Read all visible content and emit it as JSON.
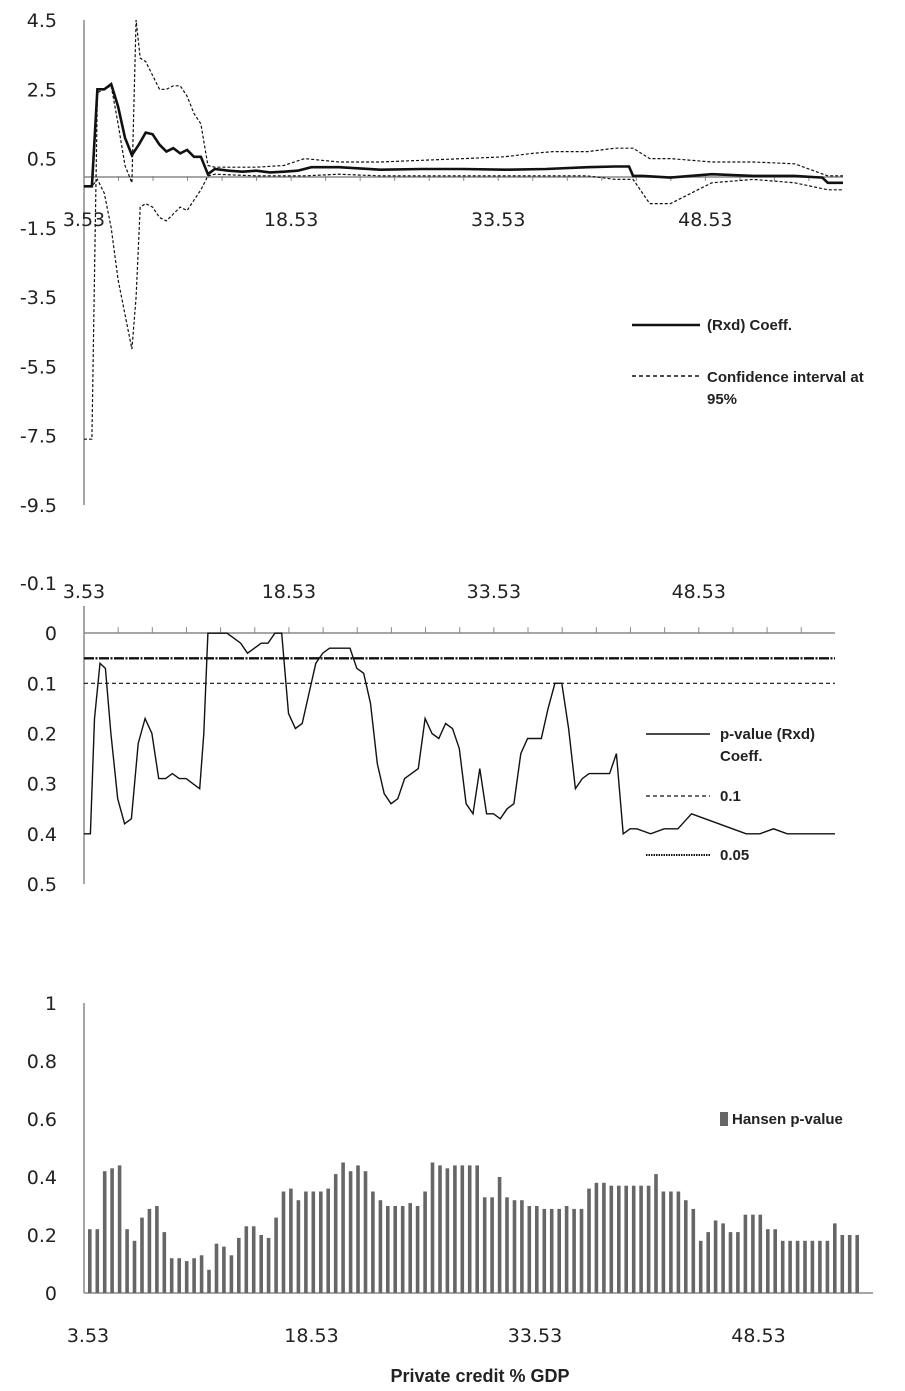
{
  "chart_data": [
    {
      "type": "line",
      "xlabel": "",
      "ylabel": "",
      "x_tick_labels": [
        "3.53",
        "18.53",
        "33.53",
        "48.53"
      ],
      "y_tick_labels": [
        "4.5",
        "2.5",
        "0.5",
        "-1.5",
        "-3.5",
        "-5.5",
        "-7.5",
        "-9.5"
      ],
      "xlim": [
        3.53,
        58.5
      ],
      "ylim": [
        -9.5,
        4.5
      ],
      "series": [
        {
          "name": "(Rxd) Coeff.",
          "style": "solid",
          "x": [
            3.53,
            4.1,
            4.5,
            5.0,
            5.5,
            6.0,
            6.5,
            7.0,
            7.5,
            8.0,
            8.5,
            9.0,
            9.5,
            10.0,
            10.5,
            11.0,
            11.5,
            12.0,
            12.5,
            13.0,
            14.0,
            15.0,
            16.0,
            17.0,
            18.0,
            19.0,
            20.0,
            22.0,
            25.0,
            28.0,
            31.0,
            34.0,
            37.0,
            40.0,
            42.0,
            43.0,
            43.3,
            44.0,
            46.0,
            49.0,
            52.0,
            55.0,
            57.0,
            57.4,
            58.5
          ],
          "y": [
            -0.3,
            -0.3,
            2.5,
            2.5,
            2.65,
            2.0,
            1.1,
            0.6,
            0.9,
            1.25,
            1.2,
            0.9,
            0.7,
            0.8,
            0.65,
            0.75,
            0.55,
            0.55,
            0.05,
            0.2,
            0.15,
            0.12,
            0.15,
            0.1,
            0.12,
            0.15,
            0.25,
            0.25,
            0.18,
            0.2,
            0.2,
            0.18,
            0.2,
            0.25,
            0.27,
            0.27,
            0.0,
            0.0,
            -0.05,
            0.05,
            0.0,
            0.0,
            -0.05,
            -0.2,
            -0.2
          ]
        },
        {
          "name": "Confidence interval at 95%",
          "style": "dashed",
          "x": [
            3.53,
            4.1,
            4.5,
            5.0,
            5.5,
            6.0,
            6.5,
            7.0,
            7.3,
            7.6,
            8.0,
            8.5,
            9.0,
            9.5,
            10.0,
            10.5,
            11.0,
            11.5,
            12.0,
            12.5,
            13.0,
            16.0,
            18.0,
            19.5,
            22.0,
            25.0,
            28.0,
            31.0,
            34.0,
            36.0,
            37.5,
            40.0,
            42.0,
            43.3,
            44.5,
            46.0,
            49.0,
            52.0,
            55.0,
            57.4,
            58.5
          ],
          "y": [
            -7.6,
            -7.6,
            2.4,
            2.5,
            2.6,
            1.5,
            0.3,
            -0.2,
            4.5,
            3.4,
            3.3,
            2.9,
            2.5,
            2.5,
            2.6,
            2.6,
            2.3,
            1.8,
            1.5,
            0.3,
            0.25,
            0.25,
            0.3,
            0.5,
            0.4,
            0.4,
            0.45,
            0.5,
            0.55,
            0.65,
            0.7,
            0.7,
            0.8,
            0.8,
            0.5,
            0.5,
            0.4,
            0.4,
            0.35,
            0.0,
            0.0
          ]
        },
        {
          "name": "",
          "style": "dashed",
          "x": [
            3.53,
            4.1,
            4.5,
            5.0,
            5.5,
            6.0,
            6.5,
            7.0,
            7.3,
            7.6,
            8.0,
            8.5,
            9.0,
            9.5,
            10.0,
            10.5,
            11.0,
            11.5,
            12.0,
            12.5,
            13.0,
            16.0,
            18.0,
            19.5,
            22.0,
            25.0,
            28.0,
            31.0,
            34.0,
            36.0,
            37.5,
            40.0,
            42.0,
            43.3,
            44.5,
            46.0,
            49.0,
            52.0,
            55.0,
            57.4,
            58.5
          ],
          "y": [
            -0.3,
            -0.3,
            -0.1,
            -0.5,
            -1.5,
            -3.0,
            -4.0,
            -5.0,
            -3.5,
            -0.9,
            -0.8,
            -0.9,
            -1.2,
            -1.3,
            -1.1,
            -0.9,
            -1.0,
            -0.7,
            -0.4,
            0.0,
            0.05,
            0.0,
            0.0,
            0.0,
            0.05,
            0.0,
            0.0,
            0.0,
            0.0,
            0.0,
            0.0,
            0.0,
            -0.1,
            -0.1,
            -0.8,
            -0.8,
            -0.2,
            -0.1,
            -0.2,
            -0.4,
            -0.4
          ]
        }
      ]
    },
    {
      "type": "line",
      "xlabel": "",
      "ylabel": "",
      "x_tick_labels": [
        "3.53",
        "18.53",
        "33.53",
        "48.53"
      ],
      "y_tick_labels": [
        "-0.1",
        "0",
        "0.1",
        "0.2",
        "0.3",
        "0.4",
        "0.5"
      ],
      "xlim": [
        3.53,
        58.5
      ],
      "ylim": [
        -0.1,
        0.5
      ],
      "y_inverted": true,
      "series": [
        {
          "name": "p-value (Rxd) Coeff.",
          "style": "solid",
          "x": [
            3.53,
            4.0,
            4.3,
            4.7,
            5.1,
            5.5,
            6.0,
            6.5,
            7.0,
            7.5,
            8.0,
            8.5,
            9.0,
            9.5,
            10.0,
            10.5,
            11.0,
            11.5,
            12.0,
            12.3,
            12.6,
            13.0,
            14.0,
            14.5,
            15.0,
            15.5,
            16.0,
            16.5,
            17.0,
            17.5,
            18.0,
            18.5,
            19.0,
            19.5,
            20.0,
            20.5,
            21.0,
            21.5,
            22.0,
            22.5,
            23.0,
            23.5,
            24.0,
            24.5,
            25.0,
            25.5,
            26.0,
            26.5,
            27.0,
            27.5,
            28.0,
            28.5,
            29.0,
            29.5,
            30.0,
            30.5,
            31.0,
            31.5,
            32.0,
            32.5,
            33.0,
            33.5,
            34.0,
            34.5,
            35.0,
            35.5,
            36.0,
            36.5,
            37.0,
            37.5,
            38.0,
            38.5,
            39.0,
            39.5,
            40.0,
            40.5,
            41.0,
            41.5,
            42.0,
            42.5,
            43.0,
            43.5,
            44.0,
            45.0,
            46.0,
            47.0,
            48.0,
            49.0,
            50.0,
            51.0,
            52.0,
            53.0,
            54.0,
            55.0,
            56.0,
            57.0,
            58.5
          ],
          "y": [
            0.4,
            0.4,
            0.17,
            0.06,
            0.07,
            0.2,
            0.33,
            0.38,
            0.37,
            0.22,
            0.17,
            0.2,
            0.29,
            0.29,
            0.28,
            0.29,
            0.29,
            0.3,
            0.31,
            0.2,
            0.0,
            0.0,
            0.0,
            0.01,
            0.02,
            0.04,
            0.03,
            0.02,
            0.02,
            0.0,
            0.0,
            0.16,
            0.19,
            0.18,
            0.12,
            0.06,
            0.04,
            0.03,
            0.03,
            0.03,
            0.03,
            0.07,
            0.08,
            0.14,
            0.26,
            0.32,
            0.34,
            0.33,
            0.29,
            0.28,
            0.27,
            0.17,
            0.2,
            0.21,
            0.18,
            0.19,
            0.23,
            0.34,
            0.36,
            0.27,
            0.36,
            0.36,
            0.37,
            0.35,
            0.34,
            0.24,
            0.21,
            0.21,
            0.21,
            0.15,
            0.1,
            0.1,
            0.19,
            0.31,
            0.29,
            0.28,
            0.28,
            0.28,
            0.28,
            0.24,
            0.4,
            0.39,
            0.39,
            0.4,
            0.39,
            0.39,
            0.36,
            0.37,
            0.38,
            0.39,
            0.4,
            0.4,
            0.39,
            0.4,
            0.4,
            0.4,
            0.4
          ]
        },
        {
          "name": "0.1",
          "style": "dashed",
          "x": [
            3.53,
            58.5
          ],
          "y": [
            0.1,
            0.1
          ]
        },
        {
          "name": "0.05",
          "style": "dashdot",
          "x": [
            3.53,
            58.5
          ],
          "y": [
            0.05,
            0.05
          ]
        }
      ]
    },
    {
      "type": "bar",
      "xlabel": "Private credit % GDP",
      "ylabel": "",
      "x_tick_labels": [
        "3.53",
        "18.53",
        "33.53",
        "48.53"
      ],
      "y_tick_labels": [
        "0",
        "0.2",
        "0.4",
        "0.6",
        "0.8",
        "1"
      ],
      "ylim": [
        0,
        1
      ],
      "series": [
        {
          "name": "Hansen p-value",
          "x_start": 3.53,
          "x_step": 0.5,
          "values": [
            0.22,
            0.22,
            0.42,
            0.43,
            0.44,
            0.22,
            0.18,
            0.26,
            0.29,
            0.3,
            0.21,
            0.12,
            0.12,
            0.11,
            0.12,
            0.13,
            0.08,
            0.17,
            0.16,
            0.13,
            0.19,
            0.23,
            0.23,
            0.2,
            0.19,
            0.26,
            0.35,
            0.36,
            0.32,
            0.35,
            0.35,
            0.35,
            0.36,
            0.41,
            0.45,
            0.42,
            0.44,
            0.42,
            0.35,
            0.32,
            0.3,
            0.3,
            0.3,
            0.31,
            0.3,
            0.35,
            0.45,
            0.44,
            0.43,
            0.44,
            0.44,
            0.44,
            0.44,
            0.33,
            0.33,
            0.4,
            0.33,
            0.32,
            0.32,
            0.3,
            0.3,
            0.29,
            0.29,
            0.29,
            0.3,
            0.29,
            0.29,
            0.36,
            0.38,
            0.38,
            0.37,
            0.37,
            0.37,
            0.37,
            0.37,
            0.37,
            0.41,
            0.35,
            0.35,
            0.35,
            0.32,
            0.29,
            0.18,
            0.21,
            0.25,
            0.24,
            0.21,
            0.21,
            0.27,
            0.27,
            0.27,
            0.22,
            0.22,
            0.18,
            0.18,
            0.18,
            0.18,
            0.18,
            0.18,
            0.18,
            0.24,
            0.2,
            0.2,
            0.2
          ]
        }
      ]
    }
  ]
}
